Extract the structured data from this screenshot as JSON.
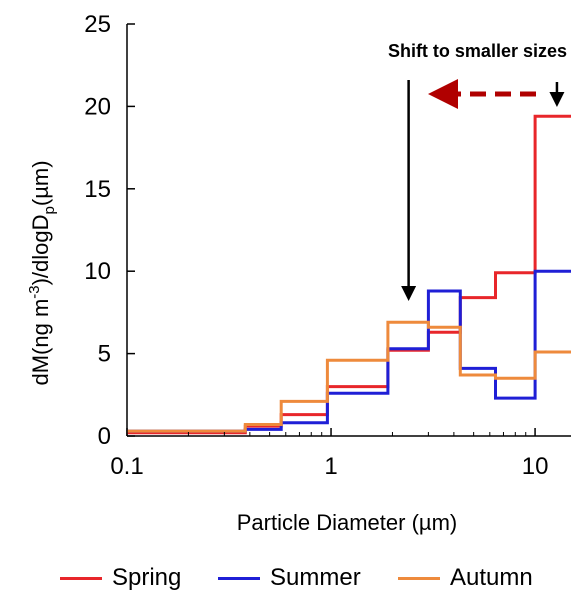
{
  "chart_data": {
    "type": "line",
    "step": true,
    "xscale": "log",
    "xlim": [
      0.1,
      15
    ],
    "ylim": [
      0,
      25
    ],
    "xlabel": "Particle Diameter (µm)",
    "ylabel": "dM(ng m-3)/dlogDp(µm)",
    "x_ticks": [
      "0.1",
      "1",
      "10"
    ],
    "y_ticks": [
      "0",
      "5",
      "10",
      "15",
      "20",
      "25"
    ],
    "bin_edges": [
      0.1,
      0.38,
      0.57,
      0.96,
      1.9,
      3.0,
      4.3,
      6.4,
      10,
      15
    ],
    "series": [
      {
        "name": "Spring",
        "color": "#e8262a",
        "values": [
          0.2,
          0.6,
          1.3,
          3.0,
          5.2,
          6.3,
          8.4,
          9.9,
          19.4
        ]
      },
      {
        "name": "Summer",
        "color": "#1f1fd6",
        "values": [
          0.3,
          0.4,
          0.8,
          2.6,
          5.3,
          8.8,
          4.1,
          2.3,
          10.0
        ]
      },
      {
        "name": "Autumn",
        "color": "#ee8a3c",
        "values": [
          0.3,
          0.7,
          2.1,
          4.6,
          6.9,
          6.6,
          3.7,
          3.5,
          5.1
        ]
      }
    ],
    "annotations": {
      "shift_text": "Shift to smaller sizes",
      "arrow_color": "#b00000"
    },
    "legend_position": "bottom",
    "grid": false
  }
}
